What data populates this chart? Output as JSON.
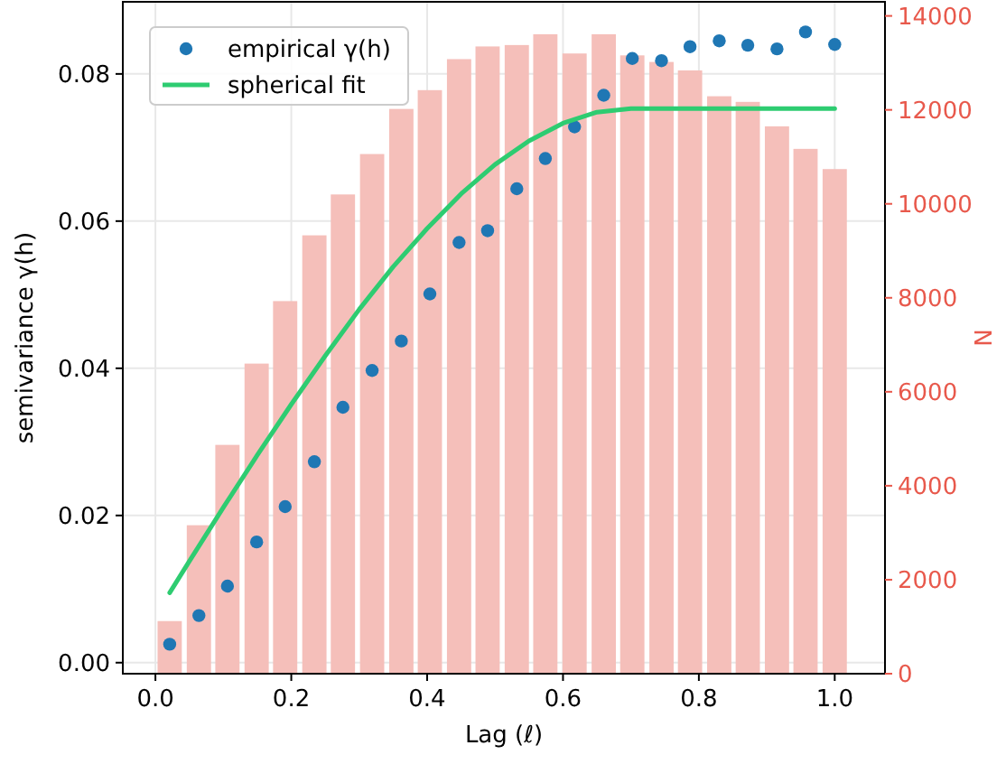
{
  "chart_data": {
    "type": "scatter",
    "xlabel": "Lag (ℓ)",
    "ylabel": "semivariance γ(h)",
    "y2label": "N",
    "xlim": [
      -0.048,
      1.074
    ],
    "ylim": [
      -0.0015,
      0.0898
    ],
    "y2lim": [
      0,
      14300
    ],
    "xticks": [
      {
        "value": 0,
        "label": "0.0"
      },
      {
        "value": 0.2,
        "label": "0.2"
      },
      {
        "value": 0.4,
        "label": "0.4"
      },
      {
        "value": 0.6,
        "label": "0.6"
      },
      {
        "value": 0.8,
        "label": "0.8"
      },
      {
        "value": 1,
        "label": "1.0"
      }
    ],
    "yticks": [
      {
        "value": 0,
        "label": "0.00"
      },
      {
        "value": 0.02,
        "label": "0.02"
      },
      {
        "value": 0.04,
        "label": "0.04"
      },
      {
        "value": 0.06,
        "label": "0.06"
      },
      {
        "value": 0.08,
        "label": "0.08"
      }
    ],
    "y2ticks": [
      0,
      2000,
      4000,
      6000,
      8000,
      10000,
      12000,
      14000
    ],
    "grid": true,
    "legend": "top left",
    "marker": "circle",
    "line_style": "solid",
    "series": [
      {
        "type": "bar",
        "axis": "y2",
        "color": "#f5bfba",
        "x": [
          0.021,
          0.064,
          0.106,
          0.149,
          0.191,
          0.234,
          0.276,
          0.319,
          0.362,
          0.404,
          0.447,
          0.489,
          0.532,
          0.574,
          0.617,
          0.66,
          0.702,
          0.745,
          0.787,
          0.83,
          0.872,
          0.915,
          0.957,
          1.0
        ],
        "values": [
          1120,
          3160,
          4870,
          6600,
          7930,
          9330,
          10200,
          11060,
          12020,
          12420,
          13080,
          13350,
          13380,
          13610,
          13200,
          13610,
          13160,
          13020,
          12840,
          12290,
          12170,
          11650,
          11170,
          10740
        ]
      },
      {
        "name": "empirical γ(h)",
        "color": "#1f77b4",
        "x": [
          0.021,
          0.064,
          0.106,
          0.149,
          0.191,
          0.234,
          0.276,
          0.319,
          0.362,
          0.404,
          0.447,
          0.489,
          0.532,
          0.574,
          0.617,
          0.66,
          0.702,
          0.745,
          0.787,
          0.83,
          0.872,
          0.915,
          0.957,
          1.0
        ],
        "values": [
          0.0025,
          0.0064,
          0.0104,
          0.0164,
          0.0212,
          0.0273,
          0.0347,
          0.0397,
          0.0437,
          0.0501,
          0.0571,
          0.0587,
          0.0644,
          0.0685,
          0.0728,
          0.0771,
          0.0821,
          0.0818,
          0.0837,
          0.0845,
          0.0839,
          0.0834,
          0.0857,
          0.084
        ]
      },
      {
        "type": "line",
        "name": "spherical fit",
        "color": "#2ecc71",
        "marker": "none",
        "x": [
          0.021,
          0.05,
          0.1,
          0.15,
          0.2,
          0.25,
          0.3,
          0.35,
          0.4,
          0.45,
          0.5,
          0.55,
          0.6,
          0.65,
          0.7,
          0.8,
          0.9,
          1.0
        ],
        "values": [
          0.0095,
          0.0138,
          0.0211,
          0.0282,
          0.0351,
          0.0417,
          0.048,
          0.0538,
          0.059,
          0.0637,
          0.0677,
          0.0709,
          0.0733,
          0.0748,
          0.0753,
          0.0753,
          0.0753,
          0.0753
        ]
      }
    ]
  }
}
